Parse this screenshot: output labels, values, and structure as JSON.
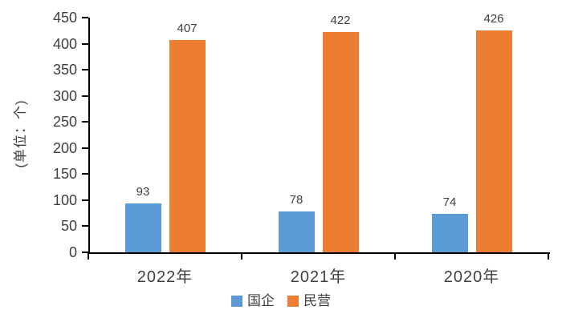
{
  "chart_data": {
    "type": "bar",
    "categories": [
      "2022年",
      "2021年",
      "2020年"
    ],
    "series": [
      {
        "name": "国企",
        "color": "#5B9BD5",
        "values": [
          93,
          78,
          74
        ]
      },
      {
        "name": "民营",
        "color": "#ED7D31",
        "values": [
          407,
          422,
          426
        ]
      }
    ],
    "title": "",
    "xlabel": "",
    "ylabel": "(单位：个)",
    "ylim": [
      0,
      450
    ],
    "ytick_step": 50,
    "grid": false,
    "legend_position": "bottom",
    "data_labels": [
      {
        "category": "2022年",
        "国企": "93",
        "民营": "407"
      },
      {
        "category": "2021年",
        "国企": "78",
        "民营": "422"
      },
      {
        "category": "2020年",
        "国企": "74",
        "民营": "426"
      }
    ]
  },
  "colors": {
    "axis_line": "#000000",
    "label_text": "#404040",
    "background": "#FFFFFF"
  }
}
